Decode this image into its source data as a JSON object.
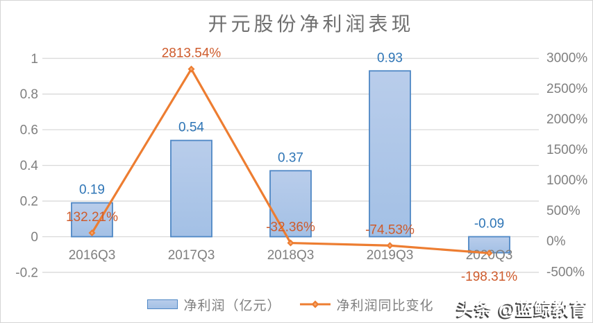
{
  "watermark": {
    "text": "头条 @蓝鲸教育"
  },
  "chart_data": {
    "type": "bar",
    "subtype": "combo-bar-line-dual-axis",
    "title": "开元股份净利润表现",
    "categories": [
      "2016Q3",
      "2017Q3",
      "2018Q3",
      "2019Q3",
      "2020Q3"
    ],
    "series": [
      {
        "name": "净利润（亿元）",
        "type": "bar",
        "axis": "left",
        "values": [
          0.19,
          0.54,
          0.37,
          0.93,
          -0.09
        ],
        "labels": [
          "0.19",
          "0.54",
          "0.37",
          "0.93",
          "-0.09"
        ]
      },
      {
        "name": "净利润同比变化",
        "type": "line",
        "axis": "right",
        "values": [
          132.21,
          2813.54,
          -32.36,
          -74.53,
          -198.31
        ],
        "labels": [
          "132.21%",
          "2813.54%",
          "-32.36%",
          "-74.53%",
          "-198.31%"
        ],
        "label_positions": [
          "above",
          "above",
          "above",
          "above",
          "below"
        ]
      }
    ],
    "left_axis": {
      "min": -0.2,
      "max": 1,
      "tick_values": [
        1,
        0.8,
        0.6,
        0.4,
        0.2,
        0,
        -0.2
      ],
      "tick_labels": [
        "1",
        "0.8",
        "0.6",
        "0.4",
        "0.2",
        "0",
        "-0.2"
      ]
    },
    "right_axis": {
      "min": -500,
      "max": 3000,
      "tick_values": [
        3000,
        2500,
        2000,
        1500,
        1000,
        500,
        0,
        -500
      ],
      "tick_labels": [
        "3000%",
        "2500%",
        "2000%",
        "1500%",
        "1000%",
        "500%",
        "0%",
        "-500%"
      ]
    },
    "grid": true,
    "legend_position": "bottom",
    "colors": {
      "bar_fill_top": "#b9cdeb",
      "bar_fill_bottom": "#a3c0e5",
      "bar_border": "#4e87c5",
      "line": "#ed7d31",
      "marker_center": "#f6a56b",
      "bar_label": "#2e75b6",
      "line_label": "#ce5b2c",
      "axis_text": "#7f7f7f",
      "grid_line": "#d9d9d9",
      "title_text": "#6f6f6f"
    }
  }
}
